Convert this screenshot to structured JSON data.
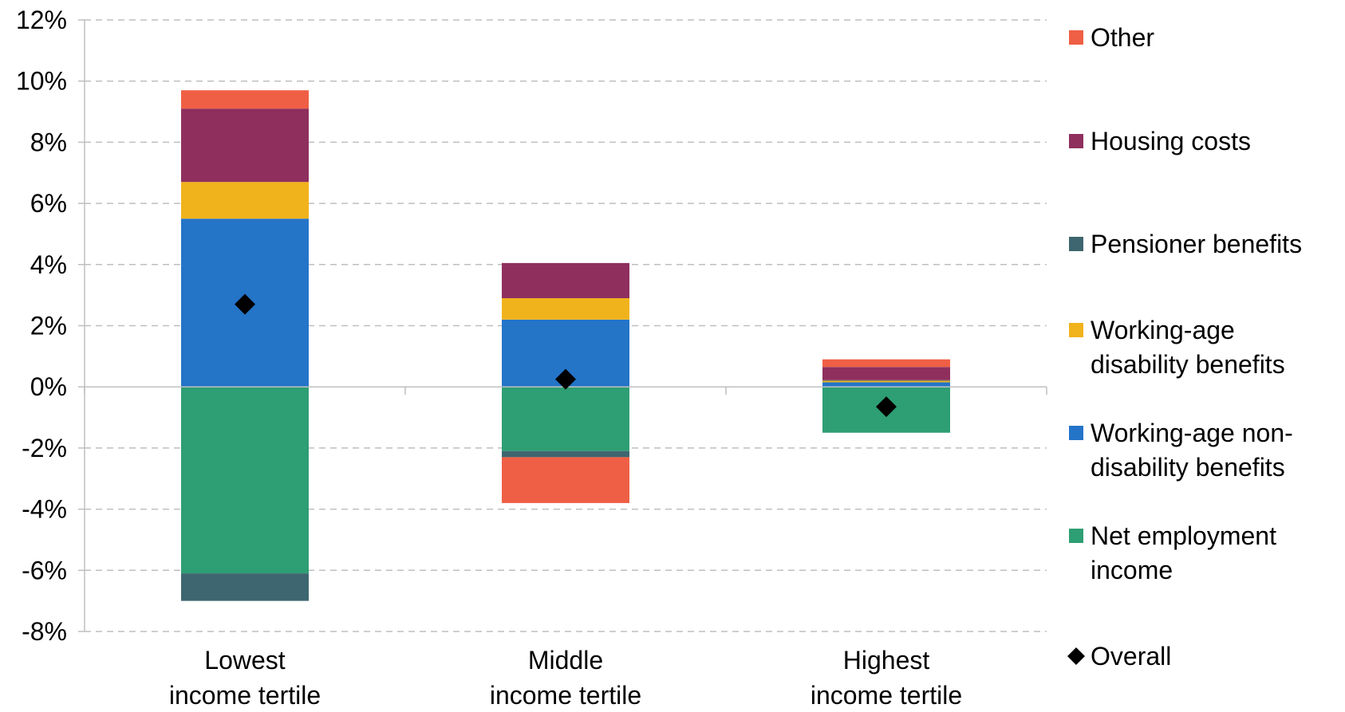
{
  "chart_data": {
    "type": "bar",
    "stacked": true,
    "title": "",
    "xlabel": "",
    "ylabel": "",
    "categories": [
      [
        "Lowest",
        "income tertile"
      ],
      [
        "Middle",
        "income tertile"
      ],
      [
        "Highest",
        "income tertile"
      ]
    ],
    "ylim": [
      -8,
      12
    ],
    "yticks": [
      12,
      10,
      8,
      6,
      4,
      2,
      0,
      -2,
      -4,
      -6,
      -8
    ],
    "ytick_labels": [
      "12%",
      "10%",
      "8%",
      "6%",
      "4%",
      "2%",
      "0%",
      "-2%",
      "-4%",
      "-6%",
      "-8%"
    ],
    "grid": "horizontal dashed",
    "legend_position": "right",
    "series": [
      {
        "name": [
          "Net employment",
          "income"
        ],
        "color": "#2e9e74",
        "values": [
          -6.1,
          -2.1,
          -1.5
        ]
      },
      {
        "name": [
          "Working-age non-",
          "disability benefits"
        ],
        "color": "#2474c8",
        "values": [
          5.5,
          2.2,
          0.15
        ]
      },
      {
        "name": [
          "Working-age",
          "disability benefits"
        ],
        "color": "#f1b31c",
        "values": [
          1.2,
          0.7,
          0.05
        ]
      },
      {
        "name": [
          "Pensioner benefits"
        ],
        "color": "#3e6670",
        "values": [
          -0.9,
          -0.2,
          0.02
        ]
      },
      {
        "name": [
          "Housing costs"
        ],
        "color": "#8f2f5e",
        "values": [
          2.4,
          1.15,
          0.43
        ]
      },
      {
        "name": [
          "Other"
        ],
        "color": "#ef5f45",
        "values": [
          0.6,
          -1.5,
          0.25
        ]
      }
    ],
    "overall": {
      "name": [
        "Overall"
      ],
      "color": "#000000",
      "values": [
        2.7,
        0.25,
        -0.65
      ]
    },
    "legend_order": [
      "Other",
      "Housing costs",
      "Pensioner benefits",
      "Working-age disability benefits",
      "Working-age non-disability benefits",
      "Net employment income",
      "Overall"
    ]
  }
}
